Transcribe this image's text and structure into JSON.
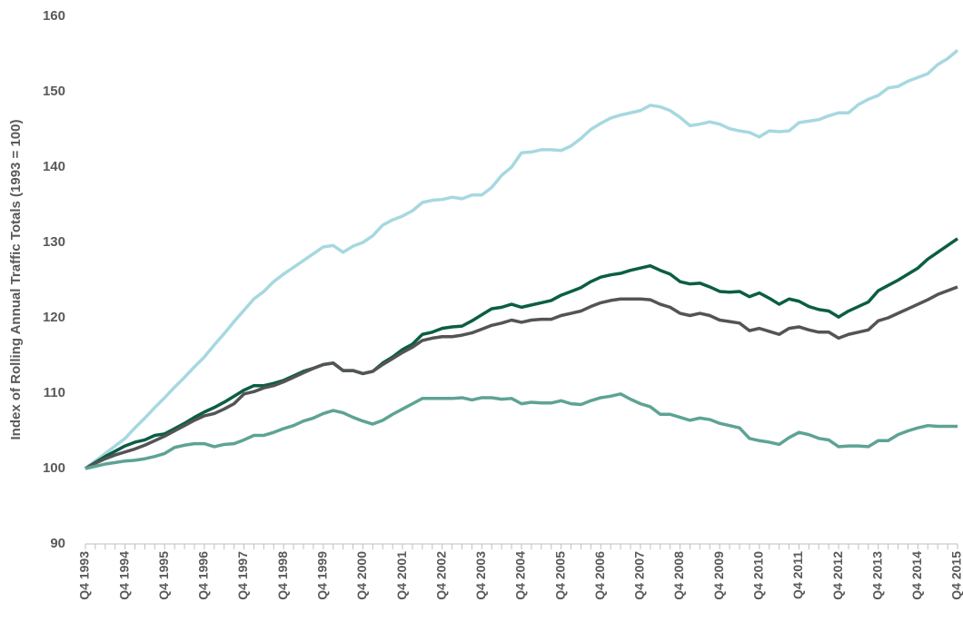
{
  "chart_data": {
    "type": "line",
    "y_label": "Index of Rolling Annual Traffic Totals (1993 = 100)",
    "categories": [
      "Q4 1993",
      null,
      null,
      null,
      "Q4 1994",
      null,
      null,
      null,
      "Q4 1995",
      null,
      null,
      null,
      "Q4 1996",
      null,
      null,
      null,
      "Q4 1997",
      null,
      null,
      null,
      "Q4 1998",
      null,
      null,
      null,
      "Q4 1999",
      null,
      null,
      null,
      "Q4 2000",
      null,
      null,
      null,
      "Q4 2001",
      null,
      null,
      null,
      "Q4 2002",
      null,
      null,
      null,
      "Q4 2003",
      null,
      null,
      null,
      "Q4 2004",
      null,
      null,
      null,
      "Q4 2005",
      null,
      null,
      null,
      "Q4 2006",
      null,
      null,
      null,
      "Q4 2007",
      null,
      null,
      null,
      "Q4 2008",
      null,
      null,
      null,
      "Q4 2009",
      null,
      null,
      null,
      "Q4 2010",
      null,
      null,
      null,
      "Q4 2011",
      null,
      null,
      null,
      "Q4 2012",
      null,
      null,
      null,
      "Q4 2013",
      null,
      null,
      null,
      "Q4 2014",
      null,
      null,
      null,
      "Q4 2015"
    ],
    "series": [
      {
        "color": "#a6d8e0",
        "values": [
          100,
          101,
          102,
          103,
          104,
          105.4,
          106.7,
          108.1,
          109.4,
          110.8,
          112.1,
          113.5,
          114.8,
          116.4,
          117.9,
          119.5,
          121,
          122.5,
          123.5,
          124.8,
          125.8,
          126.7,
          127.6,
          128.5,
          129.4,
          129.6,
          128.7,
          129.5,
          130,
          130.9,
          132.3,
          133,
          133.5,
          134.2,
          135.3,
          135.6,
          135.7,
          136,
          135.8,
          136.3,
          136.3,
          137.3,
          138.9,
          140,
          141.9,
          142,
          142.3,
          142.3,
          142.2,
          142.8,
          143.8,
          145,
          145.8,
          146.5,
          146.9,
          147.2,
          147.5,
          148.2,
          148,
          147.5,
          146.6,
          145.5,
          145.7,
          146,
          145.7,
          145.1,
          144.8,
          144.6,
          144,
          144.8,
          144.7,
          144.8,
          145.9,
          146.1,
          146.3,
          146.8,
          147.2,
          147.2,
          148.3,
          149,
          149.5,
          150.5,
          150.7,
          151.4,
          151.9,
          152.4,
          153.6,
          154.4,
          155.5
        ]
      },
      {
        "color": "#0b5e44",
        "values": [
          100,
          100.8,
          101.6,
          102.3,
          103,
          103.5,
          103.8,
          104.4,
          104.6,
          105.3,
          106,
          106.8,
          107.5,
          108.1,
          108.8,
          109.6,
          110.4,
          111,
          111,
          111.3,
          111.7,
          112.3,
          112.9,
          113.3,
          113.8,
          114,
          113,
          113,
          112.6,
          112.9,
          114,
          114.8,
          115.8,
          116.5,
          117.8,
          118.1,
          118.6,
          118.8,
          118.9,
          119.6,
          120.4,
          121.2,
          121.4,
          121.8,
          121.4,
          121.7,
          122,
          122.3,
          123,
          123.5,
          124,
          124.8,
          125.4,
          125.7,
          125.9,
          126.3,
          126.6,
          126.9,
          126.3,
          125.8,
          124.8,
          124.5,
          124.6,
          124.1,
          123.5,
          123.4,
          123.5,
          122.8,
          123.3,
          122.6,
          121.8,
          122.5,
          122.2,
          121.5,
          121.1,
          120.9,
          120.1,
          120.9,
          121.5,
          122.1,
          123.6,
          124.3,
          125,
          125.8,
          126.6,
          127.8,
          128.7,
          129.6,
          130.5
        ]
      },
      {
        "color": "#545457",
        "values": [
          100,
          100.7,
          101.3,
          101.8,
          102.2,
          102.6,
          103.1,
          103.7,
          104.3,
          105,
          105.7,
          106.4,
          107,
          107.3,
          107.9,
          108.6,
          109.9,
          110.2,
          110.7,
          111,
          111.5,
          112.1,
          112.7,
          113.3,
          113.8,
          114,
          113,
          113,
          112.6,
          112.9,
          113.8,
          114.6,
          115.4,
          116.1,
          117,
          117.3,
          117.5,
          117.5,
          117.7,
          118,
          118.5,
          119,
          119.3,
          119.7,
          119.4,
          119.7,
          119.8,
          119.8,
          120.3,
          120.6,
          120.9,
          121.5,
          122,
          122.3,
          122.5,
          122.5,
          122.5,
          122.4,
          121.8,
          121.4,
          120.6,
          120.3,
          120.6,
          120.3,
          119.7,
          119.5,
          119.3,
          118.3,
          118.6,
          118.2,
          117.8,
          118.6,
          118.8,
          118.4,
          118.1,
          118.1,
          117.3,
          117.8,
          118.1,
          118.4,
          119.6,
          120,
          120.6,
          121.2,
          121.8,
          122.4,
          123.1,
          123.6,
          124.1
        ]
      },
      {
        "color": "#5ea394",
        "values": [
          100,
          100.3,
          100.6,
          100.8,
          101,
          101.1,
          101.3,
          101.6,
          102,
          102.8,
          103.1,
          103.3,
          103.3,
          102.9,
          103.2,
          103.3,
          103.8,
          104.4,
          104.4,
          104.8,
          105.3,
          105.7,
          106.3,
          106.7,
          107.3,
          107.7,
          107.4,
          106.8,
          106.3,
          105.9,
          106.4,
          107.2,
          107.9,
          108.6,
          109.3,
          109.3,
          109.3,
          109.3,
          109.4,
          109.1,
          109.4,
          109.4,
          109.2,
          109.3,
          108.6,
          108.8,
          108.7,
          108.7,
          109,
          108.6,
          108.5,
          109,
          109.4,
          109.6,
          109.9,
          109.2,
          108.6,
          108.2,
          107.2,
          107.2,
          106.8,
          106.4,
          106.7,
          106.5,
          106,
          105.7,
          105.4,
          104,
          103.7,
          103.5,
          103.2,
          104.1,
          104.8,
          104.5,
          104,
          103.8,
          102.9,
          103,
          103,
          102.9,
          103.7,
          103.7,
          104.5,
          105,
          105.4,
          105.7,
          105.6,
          105.6,
          105.6
        ]
      }
    ],
    "ylim": [
      90,
      160
    ],
    "yticks": [
      90,
      100,
      110,
      120,
      130,
      140,
      150,
      160
    ],
    "grid": false
  }
}
